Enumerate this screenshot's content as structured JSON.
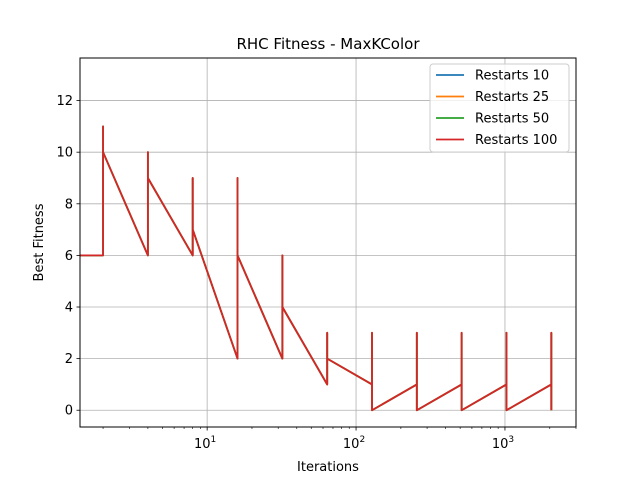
{
  "chart_data": {
    "type": "line",
    "title": "RHC Fitness - MaxKColor",
    "xlabel": "Iterations",
    "ylabel": "Best Fitness",
    "xscale": "log",
    "xlim": [
      1.4,
      3000
    ],
    "ylim": [
      -0.65,
      13.65
    ],
    "xticks": [
      {
        "value": 10,
        "base": "10",
        "exp": "1"
      },
      {
        "value": 100,
        "base": "10",
        "exp": "2"
      },
      {
        "value": 1000,
        "base": "10",
        "exp": "3"
      }
    ],
    "yticks": [
      {
        "value": 0,
        "label": "0"
      },
      {
        "value": 2,
        "label": "2"
      },
      {
        "value": 4,
        "label": "4"
      },
      {
        "value": 6,
        "label": "6"
      },
      {
        "value": 8,
        "label": "8"
      },
      {
        "value": 10,
        "label": "10"
      },
      {
        "value": 12,
        "label": "12"
      }
    ],
    "grid": true,
    "legend_position": "top-right",
    "series": [
      {
        "name": "Restarts 10",
        "color": "#1f77b4",
        "points": [
          [
            1,
            6
          ],
          [
            2,
            6
          ],
          [
            2,
            11
          ],
          [
            2,
            10
          ],
          [
            4,
            6
          ],
          [
            4,
            10
          ],
          [
            4,
            9
          ],
          [
            8,
            6
          ],
          [
            8,
            9
          ],
          [
            8,
            7
          ],
          [
            16,
            2
          ],
          [
            16,
            9
          ],
          [
            16,
            6
          ],
          [
            32,
            2
          ],
          [
            32,
            6
          ],
          [
            32,
            4
          ],
          [
            64,
            1
          ],
          [
            64,
            3
          ],
          [
            64,
            2
          ],
          [
            128,
            1
          ],
          [
            128,
            3
          ],
          [
            128,
            0
          ],
          [
            256,
            1
          ],
          [
            256,
            3
          ],
          [
            256,
            0
          ],
          [
            512,
            1
          ],
          [
            512,
            3
          ],
          [
            512,
            0
          ],
          [
            1024,
            1
          ],
          [
            1024,
            3
          ],
          [
            1024,
            0
          ],
          [
            2048,
            1
          ],
          [
            2048,
            3
          ],
          [
            2048,
            0
          ]
        ]
      },
      {
        "name": "Restarts 25",
        "color": "#ff7f0e",
        "points": [
          [
            1,
            6
          ],
          [
            2,
            6
          ],
          [
            2,
            11
          ],
          [
            2,
            10
          ],
          [
            4,
            6
          ],
          [
            4,
            10
          ],
          [
            4,
            9
          ],
          [
            8,
            6
          ],
          [
            8,
            9
          ],
          [
            8,
            7
          ],
          [
            16,
            2
          ],
          [
            16,
            9
          ],
          [
            16,
            6
          ],
          [
            32,
            2
          ],
          [
            32,
            6
          ],
          [
            32,
            4
          ],
          [
            64,
            1
          ],
          [
            64,
            3
          ],
          [
            64,
            2
          ],
          [
            128,
            1
          ],
          [
            128,
            3
          ],
          [
            128,
            0
          ],
          [
            256,
            1
          ],
          [
            256,
            3
          ],
          [
            256,
            0
          ],
          [
            512,
            1
          ],
          [
            512,
            3
          ],
          [
            512,
            0
          ],
          [
            1024,
            1
          ],
          [
            1024,
            3
          ],
          [
            1024,
            0
          ],
          [
            2048,
            1
          ],
          [
            2048,
            3
          ],
          [
            2048,
            0
          ]
        ]
      },
      {
        "name": "Restarts 50",
        "color": "#2ca02c",
        "points": [
          [
            1,
            6
          ],
          [
            2,
            6
          ],
          [
            2,
            11
          ],
          [
            2,
            10
          ],
          [
            4,
            6
          ],
          [
            4,
            10
          ],
          [
            4,
            9
          ],
          [
            8,
            6
          ],
          [
            8,
            9
          ],
          [
            8,
            7
          ],
          [
            16,
            2
          ],
          [
            16,
            9
          ],
          [
            16,
            6
          ],
          [
            32,
            2
          ],
          [
            32,
            6
          ],
          [
            32,
            4
          ],
          [
            64,
            1
          ],
          [
            64,
            3
          ],
          [
            64,
            2
          ],
          [
            128,
            1
          ],
          [
            128,
            3
          ],
          [
            128,
            0
          ],
          [
            256,
            1
          ],
          [
            256,
            3
          ],
          [
            256,
            0
          ],
          [
            512,
            1
          ],
          [
            512,
            3
          ],
          [
            512,
            0
          ],
          [
            1024,
            1
          ],
          [
            1024,
            3
          ],
          [
            1024,
            0
          ],
          [
            2048,
            1
          ],
          [
            2048,
            3
          ],
          [
            2048,
            0
          ]
        ]
      },
      {
        "name": "Restarts 100",
        "color": "#d62728",
        "points": [
          [
            1,
            6
          ],
          [
            2,
            6
          ],
          [
            2,
            11
          ],
          [
            2,
            10
          ],
          [
            4,
            6
          ],
          [
            4,
            10
          ],
          [
            4,
            9
          ],
          [
            8,
            6
          ],
          [
            8,
            9
          ],
          [
            8,
            7
          ],
          [
            16,
            2
          ],
          [
            16,
            9
          ],
          [
            16,
            6
          ],
          [
            32,
            2
          ],
          [
            32,
            6
          ],
          [
            32,
            4
          ],
          [
            64,
            1
          ],
          [
            64,
            3
          ],
          [
            64,
            2
          ],
          [
            128,
            1
          ],
          [
            128,
            3
          ],
          [
            128,
            0
          ],
          [
            256,
            1
          ],
          [
            256,
            3
          ],
          [
            256,
            0
          ],
          [
            512,
            1
          ],
          [
            512,
            3
          ],
          [
            512,
            0
          ],
          [
            1024,
            1
          ],
          [
            1024,
            3
          ],
          [
            1024,
            0
          ],
          [
            2048,
            1
          ],
          [
            2048,
            3
          ],
          [
            2048,
            0
          ]
        ]
      }
    ]
  }
}
